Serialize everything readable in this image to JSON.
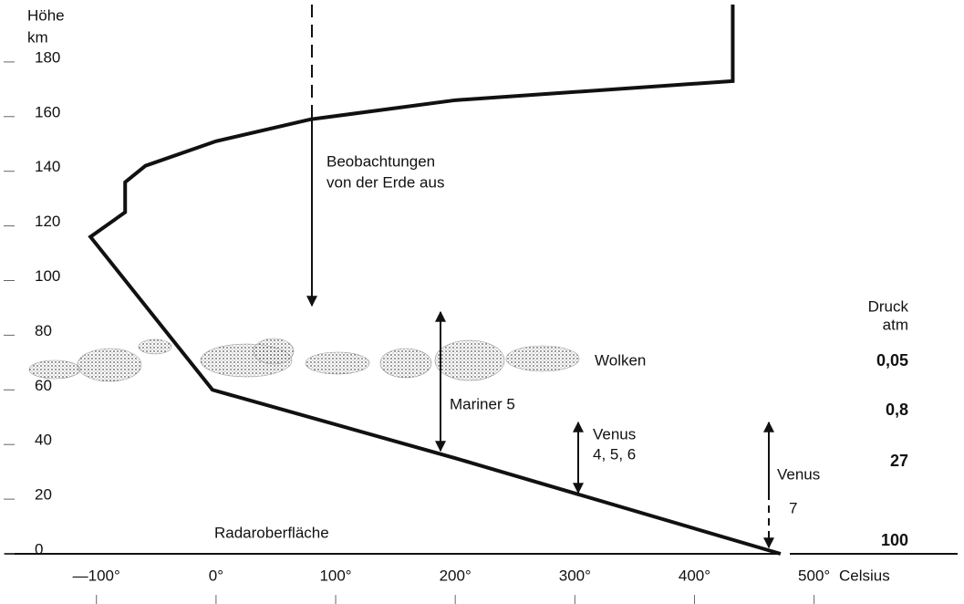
{
  "chart_data": {
    "type": "line",
    "y_label": [
      "Höhe",
      "km"
    ],
    "x_label": "Celsius",
    "x": [
      472,
      200,
      -3,
      -105,
      -76,
      -76,
      -59,
      0,
      79,
      200,
      432,
      432
    ],
    "values": [
      0,
      35,
      60,
      116,
      125,
      136,
      142,
      151,
      159,
      166,
      173,
      201
    ],
    "color": "#111111",
    "xlim": [
      -173,
      620
    ],
    "ylim": [
      0,
      201
    ],
    "xticks": [
      {
        "value": -100,
        "label": "—100°"
      },
      {
        "value": 0,
        "label": "0°"
      },
      {
        "value": 100,
        "label": "100°"
      },
      {
        "value": 200,
        "label": "200°"
      },
      {
        "value": 300,
        "label": "300°"
      },
      {
        "value": 400,
        "label": "400°"
      },
      {
        "value": 500,
        "label": "500°"
      }
    ],
    "yticks": [
      0,
      20,
      40,
      60,
      80,
      100,
      120,
      140,
      160,
      180
    ],
    "annotations": [
      "Beobachtungen",
      "von der Erde aus",
      "Mariner 5",
      "Venus",
      "4, 5, 6",
      "Venus",
      "7",
      "Wolken",
      "Radaroberfläche"
    ],
    "pressure_title": [
      "Druck",
      "atm"
    ],
    "pressure_labels": [
      "0,05",
      "0,8",
      "27",
      "100"
    ]
  }
}
